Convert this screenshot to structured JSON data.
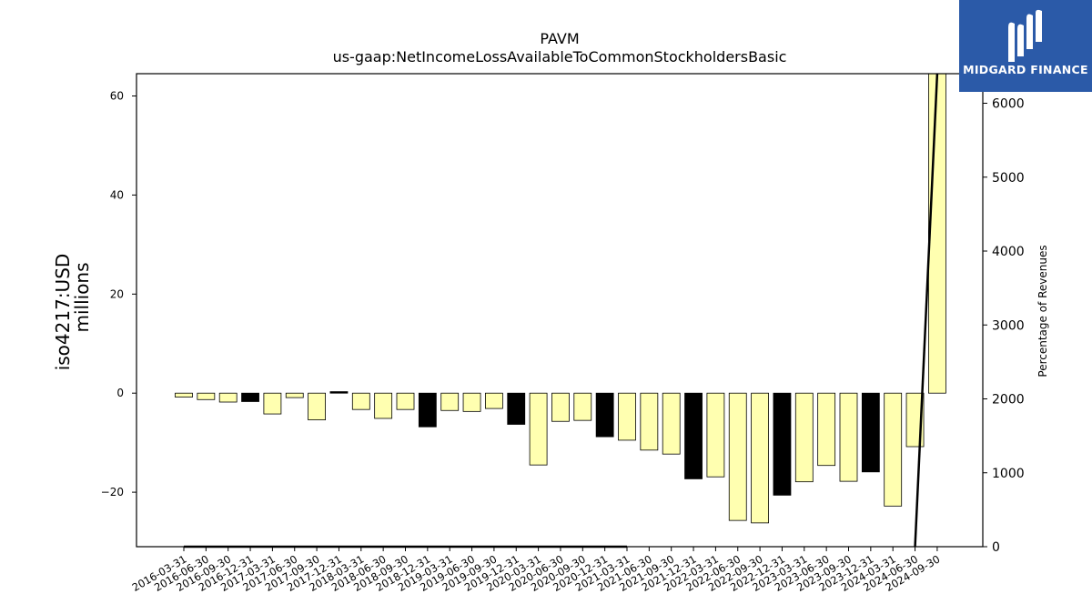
{
  "chart_data": {
    "type": "bar",
    "title": "PAVM",
    "subtitle": "us-gaap:NetIncomeLossAvailableToCommonStockholdersBasic",
    "ylabel_line1": "iso4217:USD",
    "ylabel_line2": "millions",
    "y2label": "Percentage of Revenues",
    "ylim": [
      -31,
      64.5
    ],
    "y2lim": [
      0,
      6400
    ],
    "yticks": [
      -20,
      0,
      20,
      40,
      60
    ],
    "y2ticks": [
      0,
      1000,
      2000,
      3000,
      4000,
      5000,
      6000
    ],
    "categories": [
      "2016-03-31",
      "2016-06-30",
      "2016-09-30",
      "2016-12-31",
      "2017-03-31",
      "2017-06-30",
      "2017-09-30",
      "2017-12-31",
      "2018-03-31",
      "2018-06-30",
      "2018-09-30",
      "2018-12-31",
      "2019-03-31",
      "2019-06-30",
      "2019-09-30",
      "2019-12-31",
      "2020-03-31",
      "2020-06-30",
      "2020-09-30",
      "2020-12-31",
      "2021-03-31",
      "2021-06-30",
      "2021-09-30",
      "2021-12-31",
      "2022-03-31",
      "2022-06-30",
      "2022-09-30",
      "2022-12-31",
      "2023-03-31",
      "2023-06-30",
      "2023-09-30",
      "2023-12-31",
      "2024-03-31",
      "2024-06-30",
      "2024-09-30"
    ],
    "values": [
      -0.8,
      -1.3,
      -1.8,
      -1.7,
      -4.2,
      -0.9,
      -5.4,
      0.3,
      -3.3,
      -5.1,
      -3.3,
      -6.8,
      -3.5,
      -3.7,
      -3.1,
      -6.3,
      -14.5,
      -5.7,
      -5.5,
      -8.8,
      -9.5,
      -11.5,
      -12.3,
      -17.3,
      -16.9,
      -25.7,
      -26.2,
      -20.6,
      -17.9,
      -14.6,
      -17.8,
      -15.9,
      -22.8,
      -10.8,
      64.5
    ],
    "annual_flags": [
      false,
      false,
      false,
      true,
      false,
      false,
      false,
      true,
      false,
      false,
      false,
      true,
      false,
      false,
      false,
      true,
      false,
      false,
      false,
      true,
      false,
      false,
      false,
      true,
      false,
      false,
      false,
      true,
      false,
      false,
      false,
      true,
      false,
      false,
      false
    ],
    "pct_revenue_line": [
      0,
      0,
      0,
      0,
      0,
      0,
      0,
      0,
      0,
      0,
      0,
      0,
      0,
      0,
      0,
      0,
      0,
      0,
      0,
      0,
      0,
      null,
      null,
      null,
      null,
      null,
      null,
      null,
      null,
      null,
      null,
      null,
      null,
      0,
      6400
    ],
    "colors": {
      "quarterly": "#ffffb0",
      "annual": "#000000",
      "line": "#000000"
    }
  },
  "logo": {
    "text": "MIDGARD FINANCE",
    "background": "#2b5aa8"
  }
}
